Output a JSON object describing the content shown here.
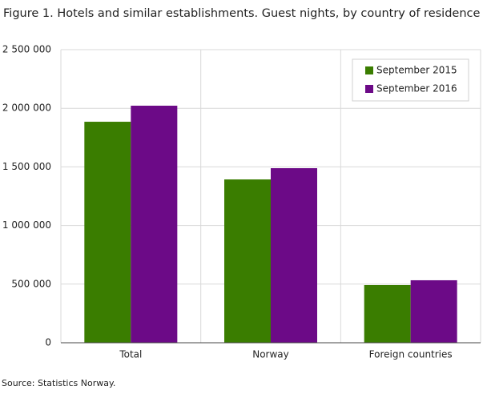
{
  "chart_data": {
    "type": "bar",
    "title": "Figure 1. Hotels and similar establishments. Guest nights, by country of residence",
    "source": "Source: Statistics Norway.",
    "categories": [
      "Total",
      "Norway",
      "Foreign countries"
    ],
    "series": [
      {
        "name": "September 2015",
        "color": "#3a7d00",
        "values": [
          1885000,
          1393000,
          492000
        ]
      },
      {
        "name": "September 2016",
        "color": "#6c0a87",
        "values": [
          2022000,
          1489000,
          533000
        ]
      }
    ],
    "ylim": [
      0,
      2500000
    ],
    "yticks": [
      0,
      {
        "value": 500000,
        "label": "500 000"
      },
      {
        "value": 1000000,
        "label": "1 000 000"
      },
      {
        "value": 1500000,
        "label": "1 500 000"
      },
      {
        "value": 2000000,
        "label": "2 000 000"
      },
      {
        "value": 2500000,
        "label": "2 500 000"
      }
    ],
    "grid": true,
    "legend": "top-right"
  }
}
